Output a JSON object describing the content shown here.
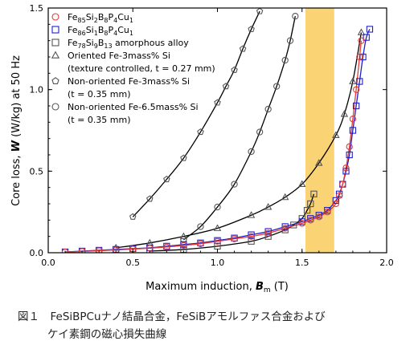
{
  "chart_data": {
    "type": "scatter",
    "xlabel": "Maximum induction, B_m (T)",
    "xlabel_parts": {
      "pre": "Maximum induction, ",
      "sym": "B",
      "sub": "m",
      "post": " (T)"
    },
    "ylabel": "Core loss, W (W/kg) at 50 Hz",
    "ylabel_parts": {
      "pre": "Core loss, ",
      "sym": "W",
      "post": " (W/kg) at 50 Hz"
    },
    "xlim": [
      0.0,
      2.0
    ],
    "ylim": [
      0.0,
      1.5
    ],
    "xticks": [
      0.0,
      0.5,
      1.0,
      1.5,
      2.0
    ],
    "yticks": [
      0.0,
      0.5,
      1.0,
      1.5
    ],
    "xtick_labels": [
      "0.0",
      "0.5",
      "1.0",
      "1.5",
      "2.0"
    ],
    "ytick_labels": [
      "0.0",
      "0.5",
      "1.0",
      "1.5"
    ],
    "shaded_band": {
      "x_range": [
        1.52,
        1.69
      ],
      "color": "#f9d374"
    },
    "legend_position": "top-left",
    "legend": [
      {
        "marker": "circle",
        "color": "#e53935",
        "lines": [
          {
            "parts": [
              [
                "Fe",
                ""
              ],
              [
                "85",
                "sub"
              ],
              [
                "Si",
                ""
              ],
              [
                "2",
                "sub"
              ],
              [
                "B",
                ""
              ],
              [
                "8",
                "sub"
              ],
              [
                "P",
                ""
              ],
              [
                "4",
                "sub"
              ],
              [
                "Cu",
                ""
              ],
              [
                "1",
                "sub"
              ]
            ]
          }
        ]
      },
      {
        "marker": "square",
        "color": "#2020c8",
        "lines": [
          {
            "parts": [
              [
                "Fe",
                ""
              ],
              [
                "86",
                "sub"
              ],
              [
                "Si",
                ""
              ],
              [
                "1",
                "sub"
              ],
              [
                "B",
                ""
              ],
              [
                "8",
                "sub"
              ],
              [
                "P",
                ""
              ],
              [
                "4",
                "sub"
              ],
              [
                "Cu",
                ""
              ],
              [
                "1",
                "sub"
              ]
            ]
          }
        ]
      },
      {
        "marker": "square",
        "color": "#555555",
        "lines": [
          {
            "parts": [
              [
                "Fe",
                ""
              ],
              [
                "78",
                "sub"
              ],
              [
                "Si",
                ""
              ],
              [
                "9",
                "sub"
              ],
              [
                "B",
                ""
              ],
              [
                "13",
                "sub"
              ],
              [
                " amorphous alloy",
                ""
              ]
            ]
          }
        ]
      },
      {
        "marker": "triangle",
        "color": "#555555",
        "lines": [
          {
            "parts": [
              [
                "Oriented Fe-3mass% Si",
                ""
              ]
            ]
          },
          {
            "parts": [
              [
                "(texture controlled, t = 0.27 mm)",
                ""
              ]
            ]
          }
        ]
      },
      {
        "marker": "pentagon",
        "color": "#555555",
        "lines": [
          {
            "parts": [
              [
                "Non-oriented Fe-3mass% Si",
                ""
              ]
            ]
          },
          {
            "parts": [
              [
                "(t = 0.35 mm)",
                ""
              ]
            ]
          }
        ]
      },
      {
        "marker": "circle",
        "color": "#555555",
        "lines": [
          {
            "parts": [
              [
                "Non-oriented Fe-6.5mass% Si",
                ""
              ]
            ]
          },
          {
            "parts": [
              [
                "(t = 0.35 mm)",
                ""
              ]
            ]
          }
        ]
      }
    ],
    "series": [
      {
        "label": "Fe-6.5mass% Si (non-oriented)",
        "marker": "circle",
        "color": "#555555",
        "x": [
          0.8,
          0.9,
          1.0,
          1.1,
          1.2,
          1.25,
          1.3,
          1.35,
          1.4,
          1.43,
          1.46
        ],
        "y": [
          0.08,
          0.16,
          0.28,
          0.42,
          0.62,
          0.74,
          0.88,
          1.02,
          1.18,
          1.3,
          1.45
        ]
      },
      {
        "label": "Fe-3mass% Si (non-oriented)",
        "marker": "pentagon",
        "color": "#555555",
        "x": [
          0.5,
          0.6,
          0.7,
          0.8,
          0.9,
          1.0,
          1.05,
          1.1,
          1.15,
          1.2,
          1.25
        ],
        "y": [
          0.22,
          0.33,
          0.45,
          0.58,
          0.74,
          0.92,
          1.02,
          1.12,
          1.25,
          1.37,
          1.48
        ]
      },
      {
        "label": "Fe-3mass% Si (oriented)",
        "marker": "triangle",
        "color": "#555555",
        "x": [
          0.4,
          0.6,
          0.8,
          1.0,
          1.2,
          1.3,
          1.4,
          1.5,
          1.6,
          1.7,
          1.75,
          1.8,
          1.85
        ],
        "y": [
          0.03,
          0.06,
          0.1,
          0.15,
          0.23,
          0.28,
          0.34,
          0.42,
          0.55,
          0.72,
          0.85,
          1.05,
          1.35
        ]
      },
      {
        "label": "Fe78Si9B13 amorphous alloy",
        "marker": "square",
        "color": "#555555",
        "x": [
          0.6,
          0.8,
          1.0,
          1.2,
          1.3,
          1.4,
          1.45,
          1.5,
          1.53,
          1.55,
          1.57
        ],
        "y": [
          0.01,
          0.02,
          0.04,
          0.07,
          0.1,
          0.14,
          0.17,
          0.21,
          0.26,
          0.3,
          0.36
        ]
      },
      {
        "label": "Fe86Si1B8P4Cu1",
        "marker": "square",
        "color": "#2020c8",
        "x": [
          0.1,
          0.2,
          0.3,
          0.4,
          0.5,
          0.6,
          0.7,
          0.8,
          0.9,
          1.0,
          1.1,
          1.2,
          1.3,
          1.4,
          1.5,
          1.55,
          1.6,
          1.65,
          1.7,
          1.72,
          1.74,
          1.76,
          1.78,
          1.8,
          1.82,
          1.84,
          1.86,
          1.88,
          1.9
        ],
        "y": [
          0.005,
          0.01,
          0.015,
          0.02,
          0.025,
          0.03,
          0.04,
          0.05,
          0.06,
          0.075,
          0.09,
          0.11,
          0.13,
          0.16,
          0.19,
          0.21,
          0.23,
          0.26,
          0.32,
          0.36,
          0.42,
          0.5,
          0.6,
          0.75,
          0.9,
          1.05,
          1.2,
          1.32,
          1.37
        ]
      },
      {
        "label": "Fe85Si2B8P4Cu1",
        "marker": "circle",
        "color": "#e53935",
        "x": [
          0.1,
          0.2,
          0.3,
          0.4,
          0.5,
          0.6,
          0.7,
          0.8,
          0.9,
          1.0,
          1.1,
          1.2,
          1.3,
          1.4,
          1.5,
          1.55,
          1.6,
          1.65,
          1.7,
          1.72,
          1.74,
          1.76,
          1.78,
          1.8,
          1.82,
          1.84,
          1.85
        ],
        "y": [
          0.004,
          0.008,
          0.012,
          0.017,
          0.022,
          0.028,
          0.035,
          0.045,
          0.055,
          0.07,
          0.085,
          0.1,
          0.12,
          0.15,
          0.18,
          0.2,
          0.22,
          0.25,
          0.3,
          0.35,
          0.42,
          0.52,
          0.65,
          0.82,
          1.0,
          1.2,
          1.3
        ]
      }
    ]
  },
  "caption": {
    "line1": "図１　FeSiBPCuナノ結晶合金，FeSiBアモルファス合金および",
    "line2": "ケイ素鋼の磁心損失曲線"
  }
}
